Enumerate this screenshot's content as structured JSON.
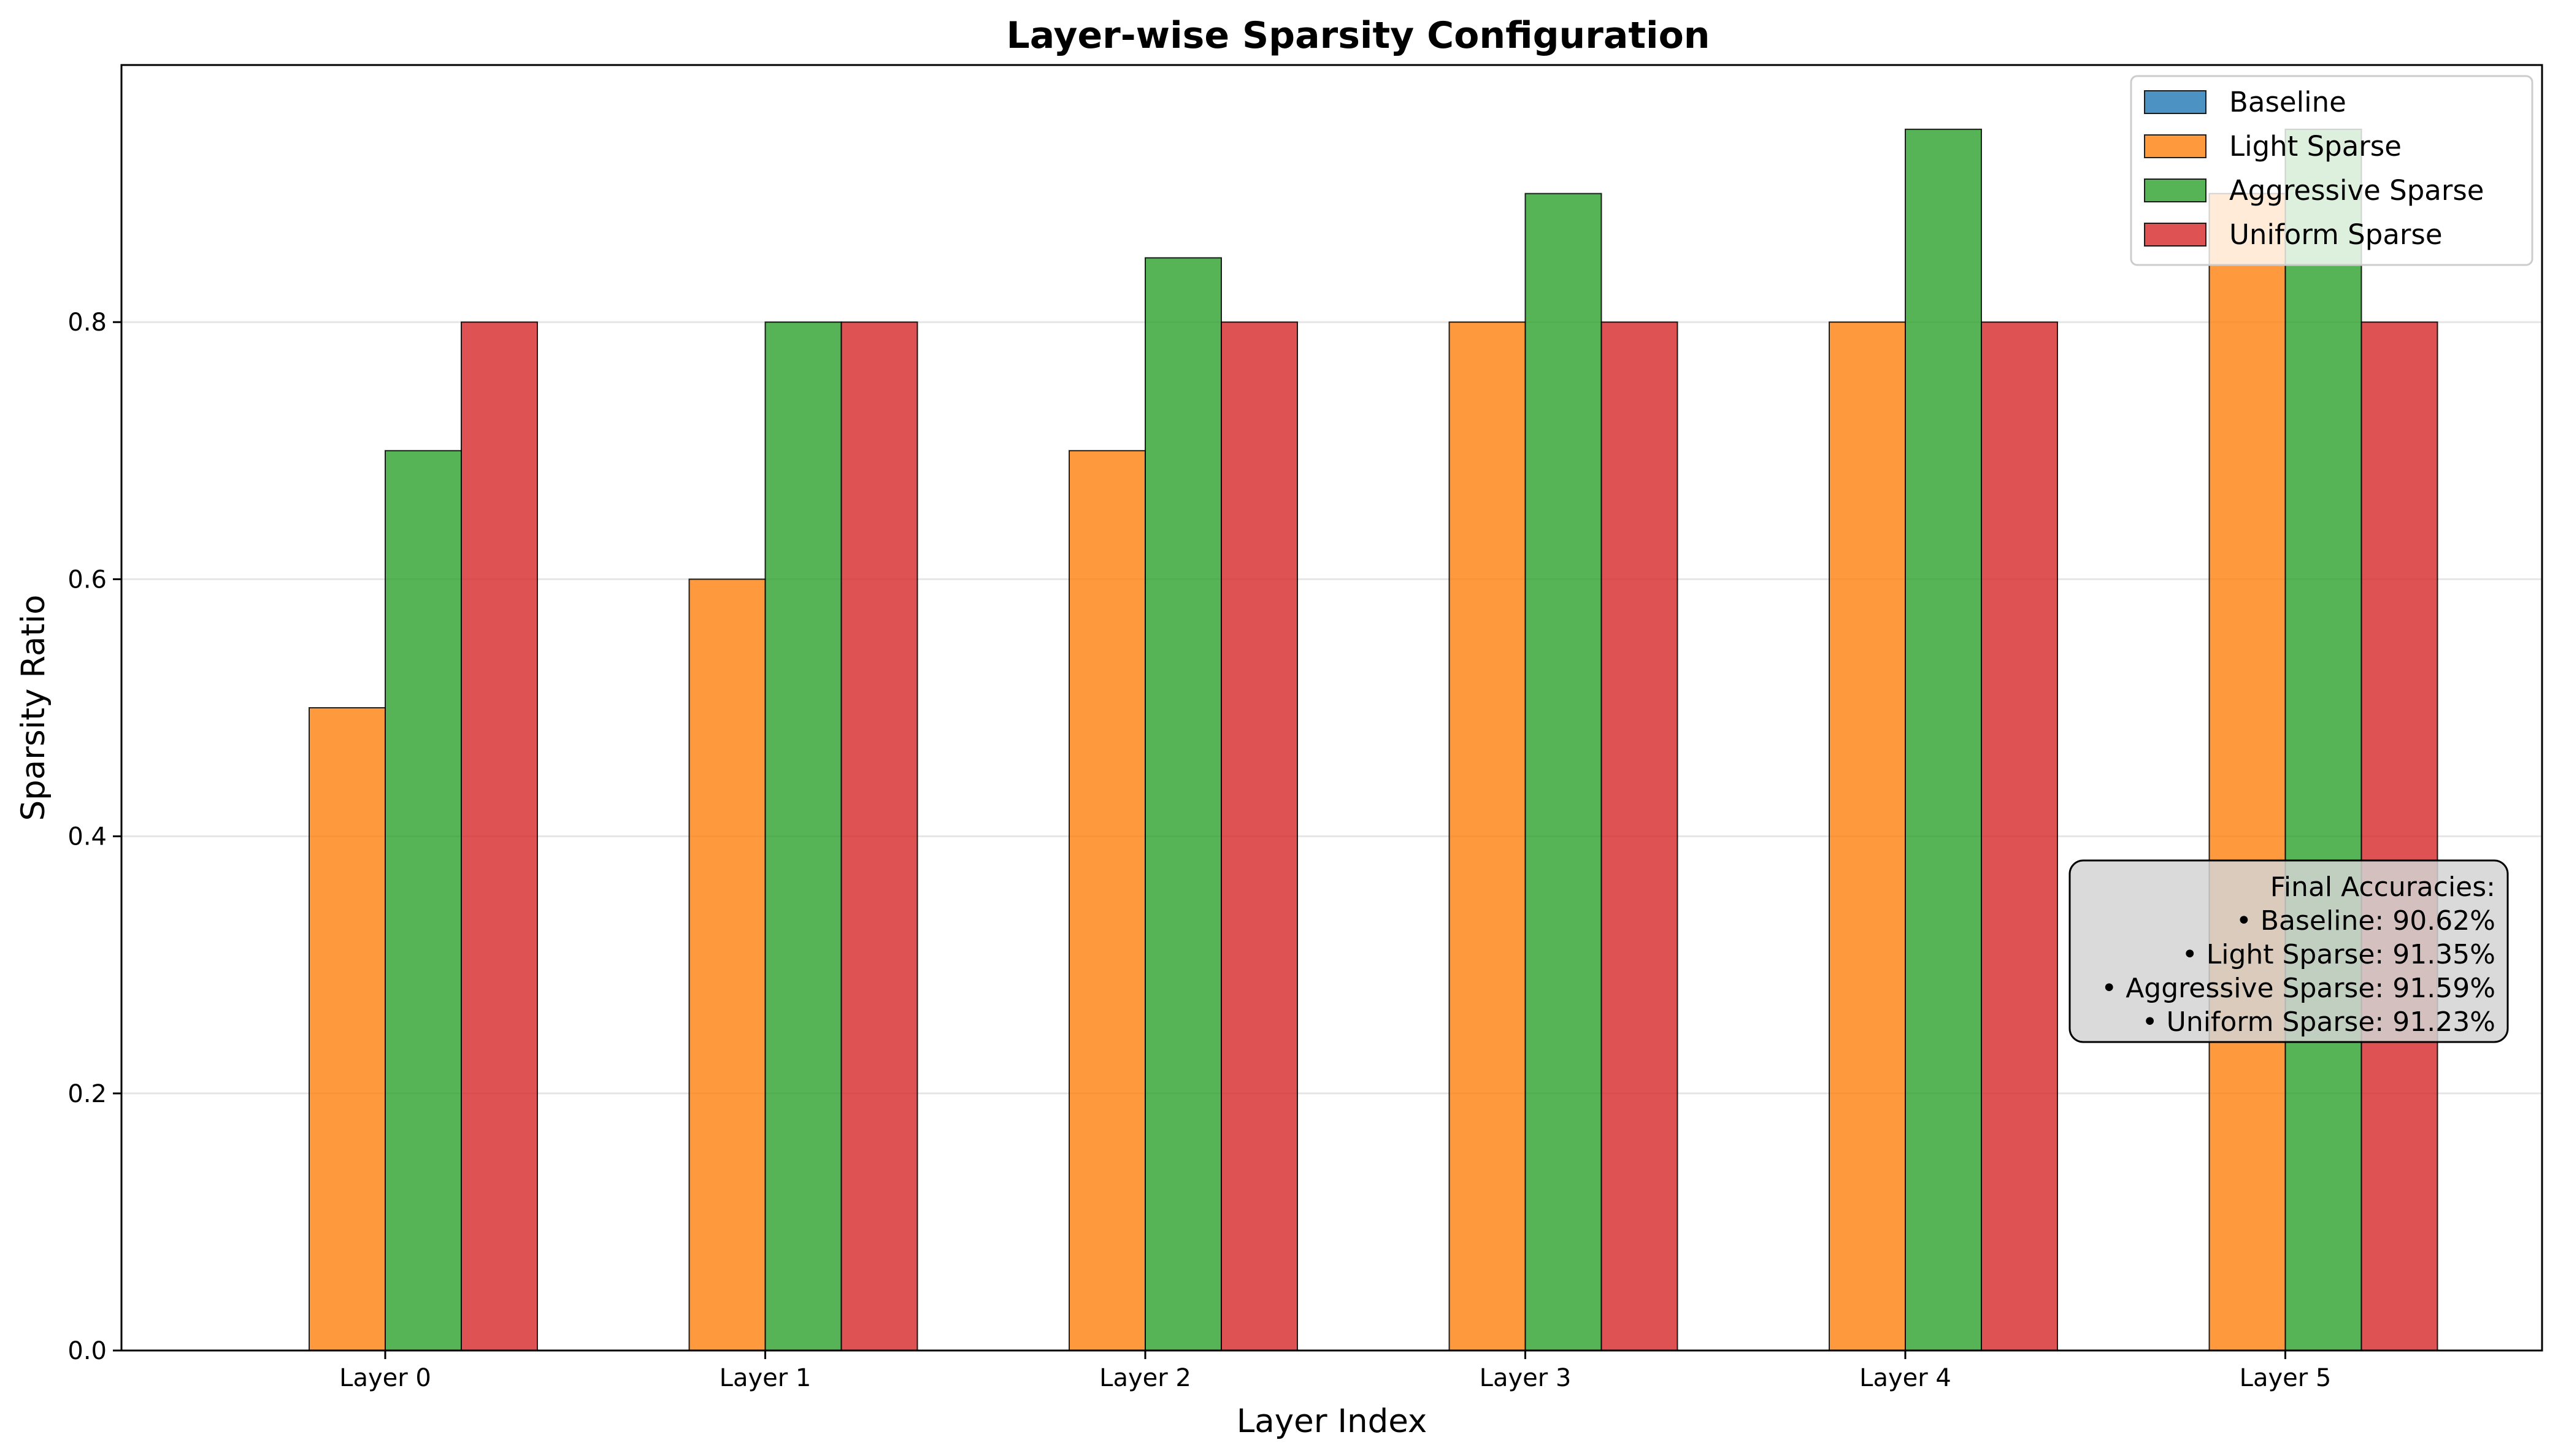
{
  "chart_data": {
    "type": "bar",
    "title": "Layer-wise Sparsity Configuration",
    "xlabel": "Layer Index",
    "ylabel": "Sparsity Ratio",
    "categories": [
      "Layer 0",
      "Layer 1",
      "Layer 2",
      "Layer 3",
      "Layer 4",
      "Layer 5"
    ],
    "ylim": [
      0,
      1.0
    ],
    "yticks": [
      0.0,
      0.2,
      0.4,
      0.6,
      0.8
    ],
    "ytick_labels": [
      "0.0",
      "0.2",
      "0.4",
      "0.6",
      "0.8"
    ],
    "grid": "y",
    "legend_position": "top-right",
    "series": [
      {
        "name": "Baseline",
        "color": "#1f77b4",
        "values": [
          0,
          0,
          0,
          0,
          0,
          0
        ]
      },
      {
        "name": "Light Sparse",
        "color": "#ff7f0e",
        "values": [
          0.5,
          0.6,
          0.7,
          0.8,
          0.8,
          0.9
        ]
      },
      {
        "name": "Aggressive Sparse",
        "color": "#2ca02c",
        "values": [
          0.7,
          0.8,
          0.85,
          0.9,
          0.95,
          0.95
        ]
      },
      {
        "name": "Uniform Sparse",
        "color": "#d62728",
        "values": [
          0.8,
          0.8,
          0.8,
          0.8,
          0.8,
          0.8
        ]
      }
    ],
    "annotation": {
      "lines": [
        "Final Accuracies:",
        "• Baseline: 90.62%",
        "• Light Sparse: 91.35%",
        "• Aggressive Sparse: 91.59%",
        "• Uniform Sparse: 91.23%"
      ]
    }
  }
}
